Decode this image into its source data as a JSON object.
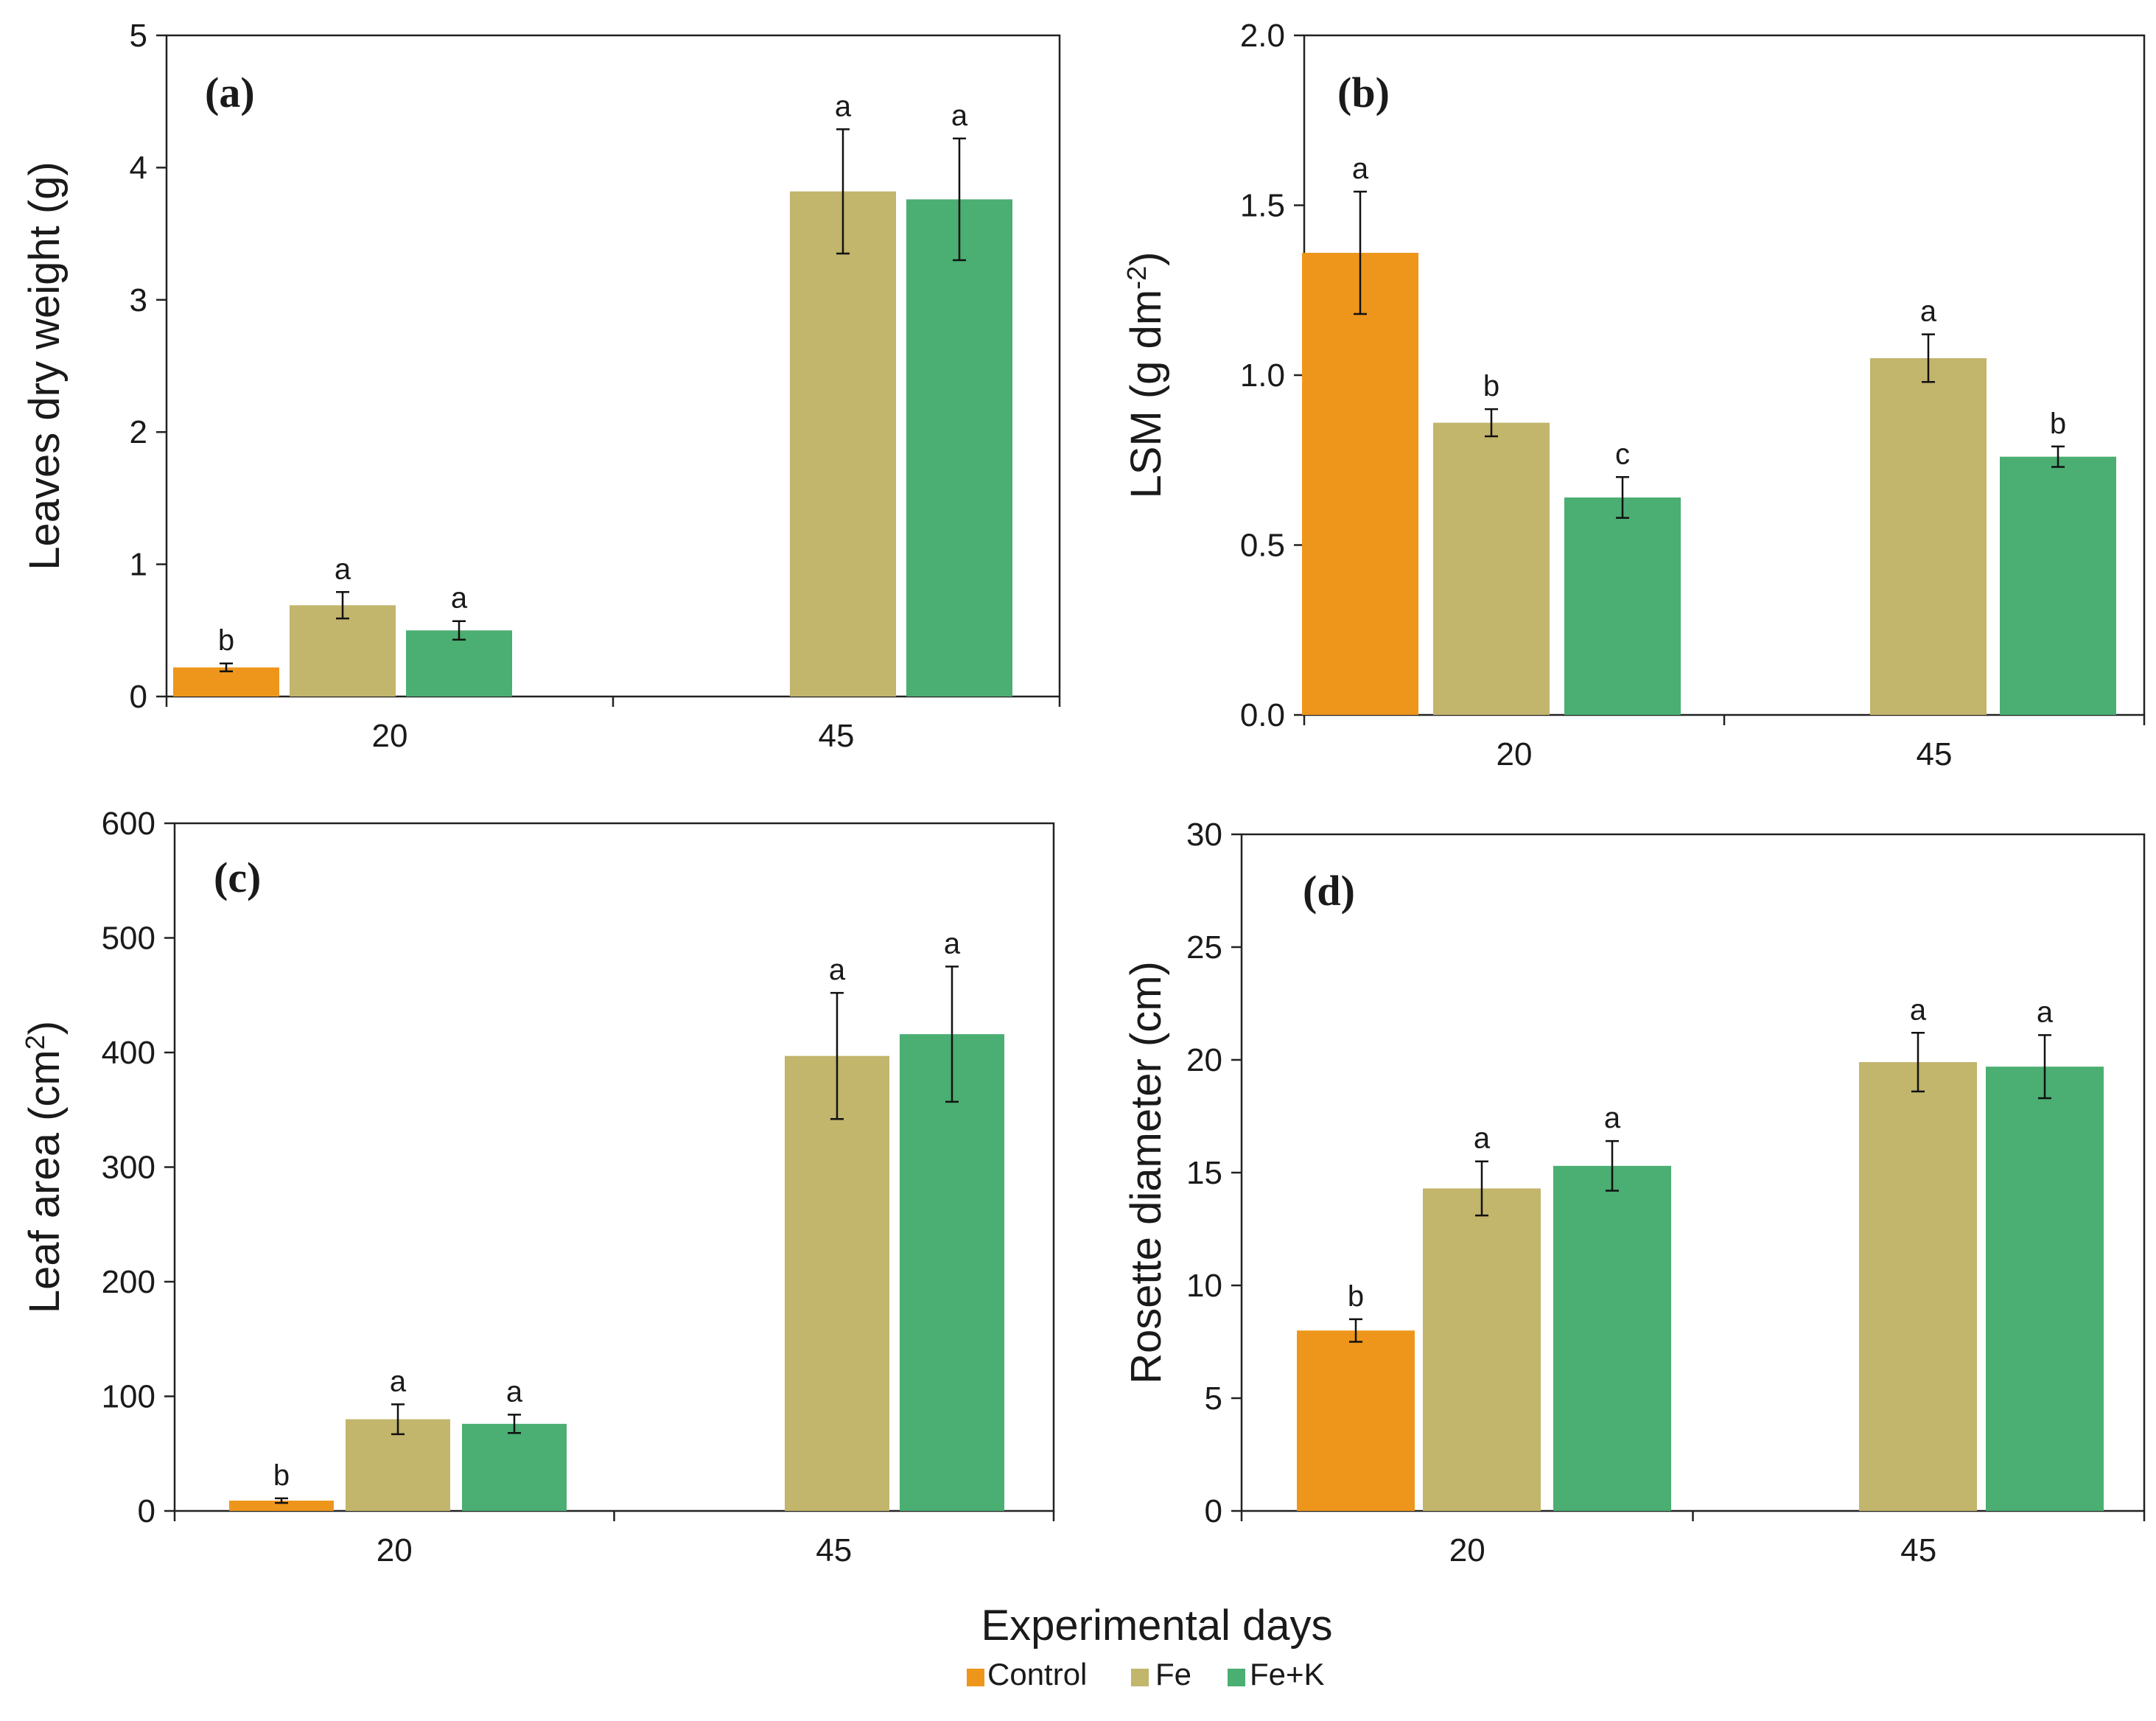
{
  "colors": {
    "Control": "#EE961B",
    "Fe": "#C2B56C",
    "Fe+K": "#4BAE72"
  },
  "xaxis_title": "Experimental days",
  "legend": [
    "Control",
    "Fe",
    "Fe+K"
  ],
  "chart_data": [
    {
      "id": "a",
      "type": "bar",
      "panel_label": "(a)",
      "ylabel": "Leaves dry weight (g)",
      "ylim": [
        0,
        5
      ],
      "yticks": [
        0,
        1,
        2,
        3,
        4,
        5
      ],
      "ytick_labels": [
        "0",
        "1",
        "2",
        "3",
        "4",
        "5"
      ],
      "categories": [
        "20",
        "45"
      ],
      "series": [
        {
          "name": "Control",
          "values": [
            0.22,
            null
          ],
          "errors": [
            0.03,
            null
          ],
          "letters": [
            "b",
            null
          ]
        },
        {
          "name": "Fe",
          "values": [
            0.69,
            3.82
          ],
          "errors": [
            0.1,
            0.47
          ],
          "letters": [
            "a",
            "a"
          ]
        },
        {
          "name": "Fe+K",
          "values": [
            0.5,
            3.76
          ],
          "errors": [
            0.07,
            0.46
          ],
          "letters": [
            "a",
            "a"
          ]
        }
      ]
    },
    {
      "id": "b",
      "type": "bar",
      "panel_label": "(b)",
      "ylabel": "LSM (g dm",
      "ylabel_sup": "-2",
      "ylabel_end": ")",
      "ylim": [
        0,
        2.0
      ],
      "yticks": [
        0,
        0.5,
        1.0,
        1.5,
        2.0
      ],
      "ytick_labels": [
        "0.0",
        "0.5",
        "1.0",
        "1.5",
        "2.0"
      ],
      "categories": [
        "20",
        "45"
      ],
      "series": [
        {
          "name": "Control",
          "values": [
            1.36,
            null
          ],
          "errors": [
            0.18,
            null
          ],
          "letters": [
            "a",
            null
          ]
        },
        {
          "name": "Fe",
          "values": [
            0.86,
            1.05
          ],
          "errors": [
            0.04,
            0.07
          ],
          "letters": [
            "b",
            "a"
          ]
        },
        {
          "name": "Fe+K",
          "values": [
            0.64,
            0.76
          ],
          "errors": [
            0.06,
            0.03
          ],
          "letters": [
            "c",
            "b"
          ]
        }
      ]
    },
    {
      "id": "c",
      "type": "bar",
      "panel_label": "(c)",
      "ylabel": "Leaf area (cm",
      "ylabel_sup": "2",
      "ylabel_end": ")",
      "ylim": [
        0,
        600
      ],
      "yticks": [
        0,
        100,
        200,
        300,
        400,
        500,
        600
      ],
      "ytick_labels": [
        "0",
        "100",
        "200",
        "300",
        "400",
        "500",
        "600"
      ],
      "categories": [
        "20",
        "45"
      ],
      "series": [
        {
          "name": "Control",
          "values": [
            9,
            null
          ],
          "errors": [
            2,
            null
          ],
          "letters": [
            "b",
            null
          ]
        },
        {
          "name": "Fe",
          "values": [
            80,
            397
          ],
          "errors": [
            13,
            55
          ],
          "letters": [
            "a",
            "a"
          ]
        },
        {
          "name": "Fe+K",
          "values": [
            76,
            416
          ],
          "errors": [
            8,
            59
          ],
          "letters": [
            "a",
            "a"
          ]
        }
      ]
    },
    {
      "id": "d",
      "type": "bar",
      "panel_label": "(d)",
      "ylabel": "Rosette diameter (cm)",
      "ylim": [
        0,
        30
      ],
      "yticks": [
        0,
        5,
        10,
        15,
        20,
        25,
        30
      ],
      "ytick_labels": [
        "0",
        "5",
        "10",
        "15",
        "20",
        "25",
        "30"
      ],
      "categories": [
        "20",
        "45"
      ],
      "series": [
        {
          "name": "Control",
          "values": [
            8.0,
            null
          ],
          "errors": [
            0.5,
            null
          ],
          "letters": [
            "b",
            null
          ]
        },
        {
          "name": "Fe",
          "values": [
            14.3,
            19.9
          ],
          "errors": [
            1.2,
            1.3
          ],
          "letters": [
            "a",
            "a"
          ]
        },
        {
          "name": "Fe+K",
          "values": [
            15.3,
            19.7
          ],
          "errors": [
            1.1,
            1.4
          ],
          "letters": [
            "a",
            "a"
          ]
        }
      ]
    }
  ]
}
